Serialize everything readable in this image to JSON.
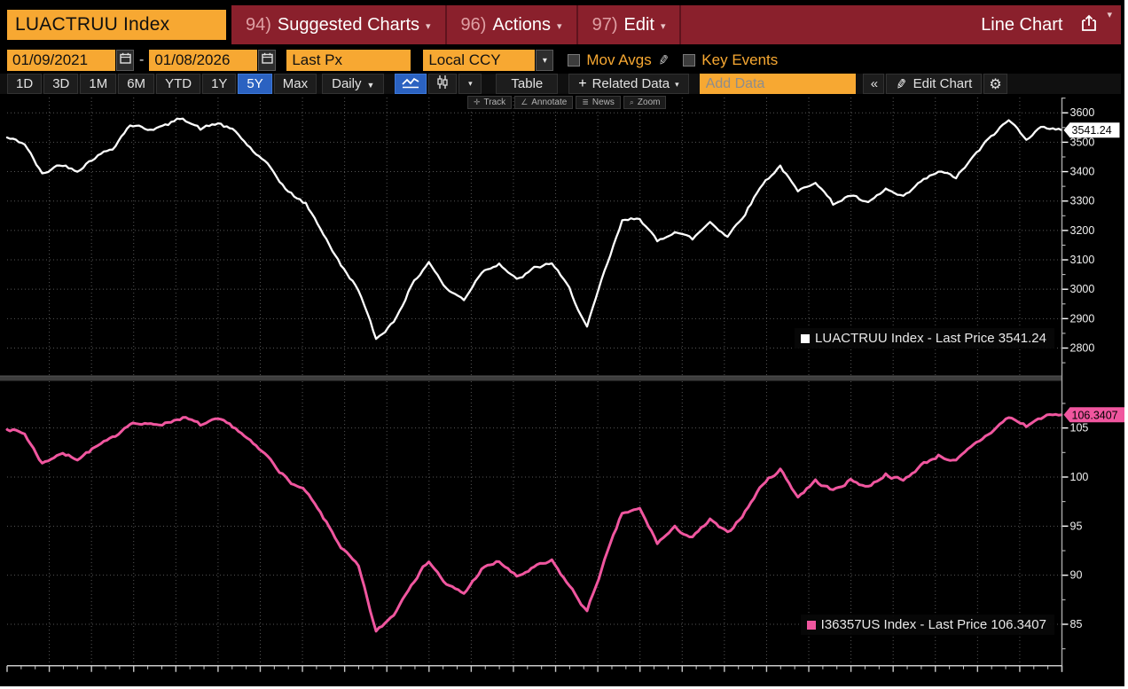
{
  "header": {
    "ticker": "LUACTRUU Index",
    "menus": [
      {
        "num": "94)",
        "label": "Suggested Charts"
      },
      {
        "num": "96)",
        "label": "Actions"
      },
      {
        "num": "97)",
        "label": "Edit"
      }
    ],
    "chart_type_label": "Line Chart"
  },
  "controls": {
    "date_from": "01/09/2021",
    "date_separator": "-",
    "date_to": "01/08/2026",
    "price_field": "Last Px",
    "currency": "Local CCY",
    "mov_avgs_label": "Mov Avgs",
    "key_events_label": "Key Events"
  },
  "toolbar": {
    "ranges": [
      "1D",
      "3D",
      "1M",
      "6M",
      "YTD",
      "1Y",
      "5Y",
      "Max"
    ],
    "selected_range": "5Y",
    "period_label": "Daily",
    "table_label": "Table",
    "related_data_label": "Related Data",
    "add_data_placeholder": "Add Data",
    "collapse_label": "«",
    "edit_chart_label": "Edit Chart"
  },
  "chart_tools": [
    {
      "icon": "✛",
      "label": "Track"
    },
    {
      "icon": "∠",
      "label": "Annotate"
    },
    {
      "icon": "≣",
      "label": "News"
    },
    {
      "icon": "⌕",
      "label": "Zoom"
    }
  ],
  "icons": {
    "caret_down_small": "▾",
    "caret_down_large": "▼",
    "plus": "+",
    "pencil": "✎",
    "gear": "⚙",
    "collapse": "«"
  },
  "colors": {
    "amber": "#f7a832",
    "header_red": "#8a202c",
    "selected_blue": "#2b62c1",
    "white_series": "#ffffff",
    "pink_series": "#f0569f",
    "grid": "#565656",
    "axis": "#a8a8a8",
    "tick_text": "#f2f2f2"
  },
  "chart_data": [
    {
      "type": "line",
      "panel": "top",
      "legend": "LUACTRUU Index - Last Price 3541.24",
      "last_tag": "3541.24",
      "x_start": "01/09/2021",
      "x_end": "01/08/2026",
      "ylim": [
        2705,
        3652
      ],
      "yticks": [
        2800,
        2900,
        3000,
        3100,
        3200,
        3300,
        3400,
        3500,
        3600
      ],
      "ytick_minor_step": 50,
      "series": [
        {
          "name": "LUACTRUU Index",
          "color": "#ffffff",
          "last_price": 3541.24,
          "monthly_values": [
            3515,
            3495,
            3390,
            3425,
            3405,
            3450,
            3480,
            3560,
            3545,
            3555,
            3585,
            3545,
            3565,
            3535,
            3470,
            3410,
            3330,
            3290,
            3190,
            3080,
            3000,
            2830,
            2890,
            3010,
            3095,
            3000,
            2965,
            3060,
            3090,
            3030,
            3070,
            3090,
            3000,
            2870,
            3060,
            3230,
            3245,
            3160,
            3200,
            3170,
            3230,
            3180,
            3260,
            3360,
            3420,
            3330,
            3370,
            3290,
            3320,
            3290,
            3340,
            3310,
            3365,
            3400,
            3380,
            3450,
            3520,
            3575,
            3515,
            3555,
            3541.24
          ]
        }
      ]
    },
    {
      "type": "line",
      "panel": "bottom",
      "legend": "I36357US Index - Last Price 106.3407",
      "last_tag": "106.3407",
      "x_start": "01/09/2021",
      "x_end": "01/08/2026",
      "ylim": [
        80.8,
        109.8
      ],
      "yticks": [
        85,
        90,
        95,
        100,
        105
      ],
      "ytick_minor_step": 2.5,
      "series": [
        {
          "name": "I36357US Index",
          "color": "#f0569f",
          "last_price": 106.3407,
          "monthly_values": [
            105.0,
            104.4,
            101.4,
            102.4,
            101.9,
            103.0,
            103.9,
            105.6,
            105.3,
            105.5,
            106.1,
            105.3,
            105.8,
            105.0,
            103.3,
            101.8,
            99.6,
            98.5,
            95.8,
            92.9,
            90.8,
            84.2,
            86.0,
            89.2,
            91.5,
            89.0,
            88.1,
            90.6,
            91.4,
            89.8,
            90.8,
            91.4,
            88.9,
            86.3,
            91.5,
            96.3,
            96.7,
            93.3,
            94.8,
            93.8,
            95.6,
            94.2,
            96.5,
            99.3,
            100.8,
            98.0,
            99.6,
            98.6,
            99.7,
            99.0,
            100.3,
            99.6,
            101.2,
            102.2,
            101.6,
            103.2,
            104.6,
            106.1,
            105.2,
            106.2,
            106.3407
          ]
        }
      ]
    }
  ]
}
